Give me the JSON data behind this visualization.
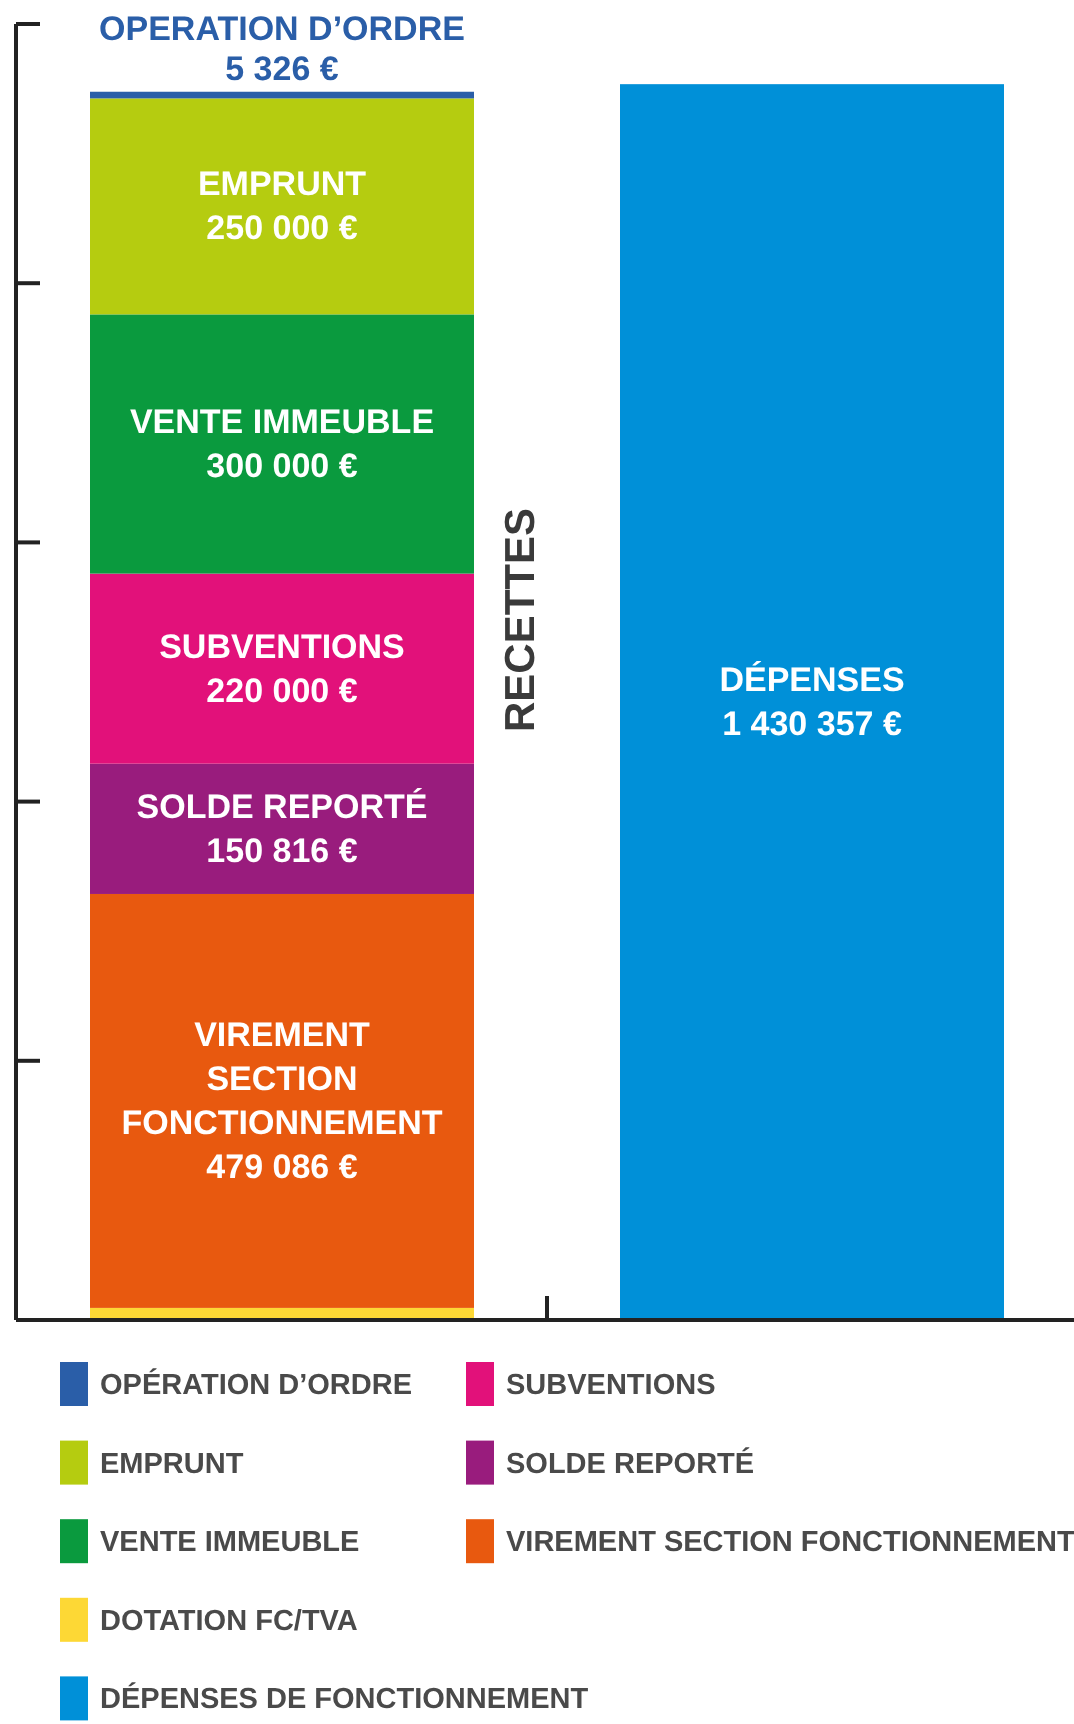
{
  "chart_data": {
    "type": "bar",
    "stacked": true,
    "categories": [
      "RECETTES",
      null
    ],
    "ylim": [
      0,
      1500000
    ],
    "yticks": [
      {
        "value": 0,
        "label": null
      },
      {
        "value": 300000,
        "label": null
      },
      {
        "value": 600000,
        "label": null
      },
      {
        "value": 900000,
        "label": null
      },
      {
        "value": 1200000,
        "label": null
      },
      {
        "value": 1500000,
        "label": null
      }
    ],
    "tick_labels": "x",
    "grid": false,
    "legend": "bottom",
    "series": [
      {
        "name": "DOTATION FC/TVA",
        "color": "#fdd835",
        "values": [
          14000,
          null
        ],
        "value_labels": [
          null,
          null
        ]
      },
      {
        "name": "VIREMENT SECTION FONCTIONNEMENT",
        "color": "#e8590f",
        "values": [
          479086,
          null
        ],
        "value_labels": [
          "VIREMENT\nSECTION\nFONCTIONNEMENT\n479 086 €",
          null
        ]
      },
      {
        "name": "SOLDE REPORTÉ",
        "color": "#991c7d",
        "values": [
          150816,
          null
        ],
        "value_labels": [
          "SOLDE REPORTÉ\n150 816 €",
          null
        ]
      },
      {
        "name": "SUBVENTIONS",
        "color": "#e2117a",
        "values": [
          220000,
          null
        ],
        "value_labels": [
          "SUBVENTIONS\n220 000 €",
          null
        ]
      },
      {
        "name": "VENTE IMMEUBLE",
        "color": "#0a9a3e",
        "values": [
          300000,
          null
        ],
        "value_labels": [
          "VENTE IMMEUBLE\n300 000 €",
          null
        ]
      },
      {
        "name": "EMPRUNT",
        "color": "#b5cc10",
        "values": [
          250000,
          null
        ],
        "value_labels": [
          "EMPRUNT\n250 000 €",
          null
        ]
      },
      {
        "name": "OPÉRATION D’ORDRE",
        "color": "#2a5ea8",
        "values": [
          5326,
          null
        ],
        "value_labels": [
          "OPERATION D’ORDRE\n5 326 €",
          null
        ]
      },
      {
        "name": "DÉPENSES DE FONCTIONNEMENT",
        "color": "#0090d8",
        "values": [
          null,
          1430357
        ],
        "value_labels": [
          null,
          "DÉPENSES\n1 430 357 €"
        ]
      }
    ]
  }
}
